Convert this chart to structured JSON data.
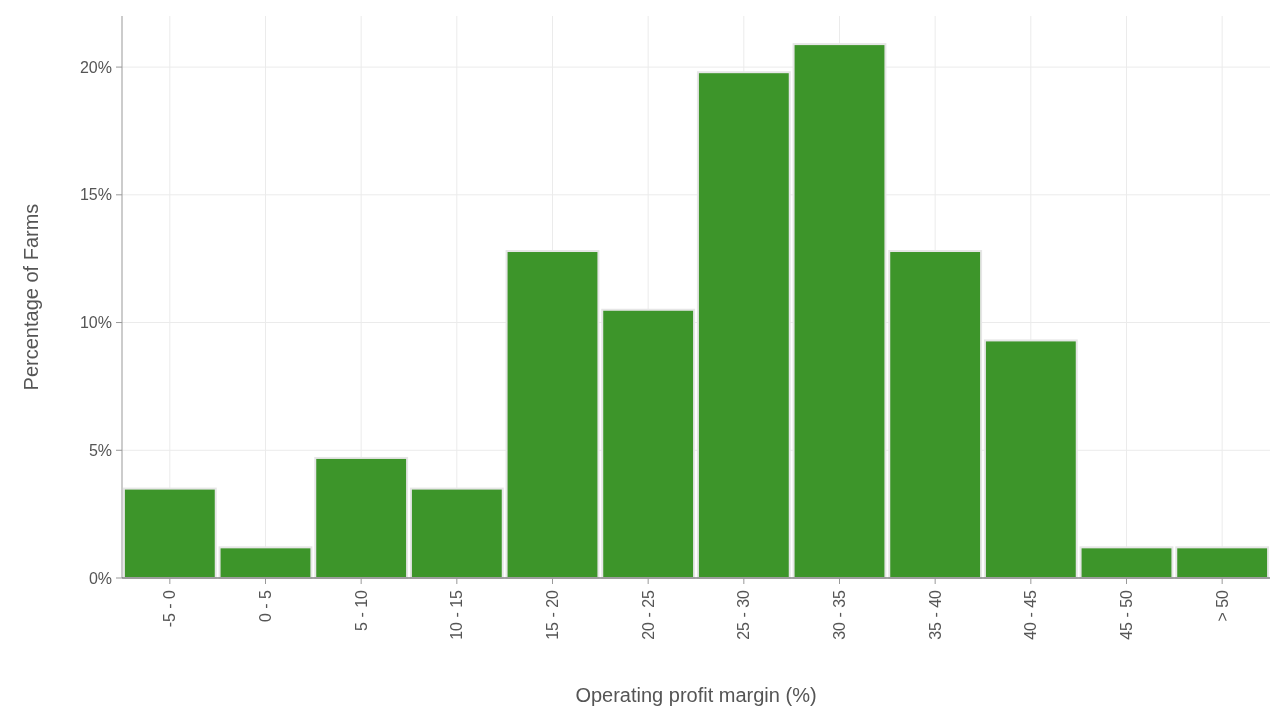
{
  "chart_data": {
    "type": "bar",
    "xlabel": "Operating profit margin (%)",
    "ylabel": "Percentage of Farms",
    "categories": [
      "-5 - 0",
      "0 - 5",
      "5 - 10",
      "10 - 15",
      "15 - 20",
      "20 - 25",
      "25 - 30",
      "30 - 35",
      "35 - 40",
      "40 - 45",
      "45 - 50",
      "> 50"
    ],
    "values": [
      3.5,
      1.2,
      4.7,
      3.5,
      12.8,
      10.5,
      19.8,
      20.9,
      12.8,
      9.3,
      1.2,
      1.2
    ],
    "color": "#3d952a",
    "ylim": [
      0,
      22
    ],
    "yticks": [
      {
        "value": 0,
        "label": "0%"
      },
      {
        "value": 5,
        "label": "5%"
      },
      {
        "value": 10,
        "label": "10%"
      },
      {
        "value": 15,
        "label": "15%"
      },
      {
        "value": 20,
        "label": "20%"
      }
    ],
    "grid": true
  }
}
